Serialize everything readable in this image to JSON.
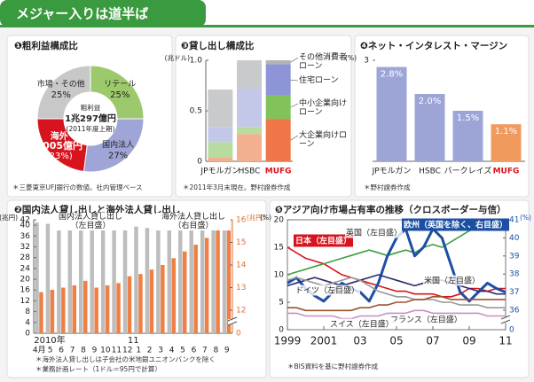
{
  "header": {
    "title": "メジャー入りは道半ば"
  },
  "chart_data": [
    {
      "type": "donut",
      "title": "❶粗利益構成比",
      "categories": [
        "リテール",
        "国内法人",
        "海外",
        "市場・その他"
      ],
      "values": [
        25,
        27,
        23,
        25
      ],
      "value_labels": [
        "25%",
        "27%",
        "(23%)",
        "25%"
      ],
      "colors": [
        "#9cc96b",
        "#9fa5d6",
        "#d7141e",
        "#c8c8c8"
      ],
      "annotation": {
        "text": "3005億円",
        "category": 2
      },
      "center_text": [
        "粗利益",
        "1兆297億円",
        "(2011年度上期)"
      ],
      "notes": [
        "＊三菱東京UFJ銀行の数値。社内管理ベース"
      ]
    },
    {
      "type": "bar",
      "title": "❷国内法人貸し出しと海外法人貸し出し",
      "categories": [
        "4月",
        "5",
        "6",
        "7",
        "8",
        "9",
        "10",
        "11",
        "12",
        "1",
        "2",
        "3",
        "4",
        "5",
        "6",
        "7",
        "8",
        "9"
      ],
      "years": [
        {
          "label": "2010年",
          "category": 0
        },
        {
          "label": "11",
          "category": 9
        }
      ],
      "series": [
        {
          "name": "国内法人貸し出し（左目盛）",
          "color": "#bdbdbd",
          "values": [
            41,
            40.5,
            40,
            40.5,
            40,
            40,
            39.5,
            39.5,
            40,
            39.5,
            39,
            40,
            39.5,
            39,
            39,
            39,
            38.5,
            39
          ]
        },
        {
          "name": "海外法人貸し出し（右目盛）",
          "color": "#ef7f45",
          "axis": "y2",
          "values": [
            12.8,
            12.9,
            13,
            13.1,
            13.3,
            13,
            13.1,
            13.2,
            13.5,
            13.6,
            13.8,
            14,
            14.3,
            14.6,
            14.9,
            15.2,
            15.6,
            16
          ]
        }
      ],
      "ylim": [
        0,
        42
      ],
      "yticks": [
        0,
        4,
        8,
        12,
        16,
        20,
        24,
        28,
        32,
        36,
        40,
        42
      ],
      "y_unit": "(兆円)",
      "y2lim": [
        0,
        16
      ],
      "y2ticks": [
        0,
        12,
        13,
        14,
        15,
        16
      ],
      "y2_break": [
        0,
        12
      ],
      "y2_unit": "(兆円)",
      "notes": [
        "＊海外法人貸し出しは子会社の米地銀ユニオンバンクを除く",
        "＊業務計画レート（1ドル＝95円で計算）"
      ]
    },
    {
      "type": "stacked_bar",
      "title": "❸貸し出し構成比",
      "categories": [
        "JPモルガン",
        "HSBC",
        "MUFG"
      ],
      "highlight": "MUFG",
      "series": [
        {
          "name": "大企業向けローン",
          "color": "#f3b08e",
          "highlight_color": "#ee7648",
          "values": [
            0.04,
            0.27,
            0.42
          ]
        },
        {
          "name": "中小企業向けローン",
          "color": "#b8dca0",
          "highlight_color": "#82c25a",
          "values": [
            0.15,
            0.07,
            0.23
          ]
        },
        {
          "name": "住宅ローン",
          "color": "#c4c8e8",
          "highlight_color": "#8d95d8",
          "values": [
            0.15,
            0.38,
            0.31
          ]
        },
        {
          "name": "その他消費者ローン",
          "color": "#c8cacc",
          "highlight_color": "#b4b4b4",
          "values": [
            0.37,
            0.28,
            0.04
          ]
        }
      ],
      "ylim": [
        0,
        1
      ],
      "yticks": [
        0,
        0.5,
        {
          "value": 1,
          "label": "1.0"
        }
      ],
      "y_unit": "(兆ドル)",
      "notes": [
        "＊2011年3月末現在。野村證券作成"
      ]
    },
    {
      "type": "bar",
      "title": "❹ネット・インタレスト・マージン",
      "categories": [
        "JPモルガン",
        "HSBC",
        "バークレイズ",
        "MUFG"
      ],
      "highlight": "MUFG",
      "values": [
        2.8,
        2.0,
        1.5,
        1.1
      ],
      "value_labels": [
        "2.8%",
        "2.0%",
        "1.5%",
        "1.1%"
      ],
      "color": "#9da4d6",
      "highlight_color": "#f19a5e",
      "ylim": [
        0,
        3
      ],
      "yticks": [
        3
      ],
      "y_unit": "(%)",
      "notes": [
        "＊野村證券作成"
      ]
    },
    {
      "type": "line",
      "title": "❺アジア向け市場占有率の推移（クロスボーダー与信）",
      "x": [
        1999,
        1999.5,
        2000,
        2000.5,
        2001,
        2001.5,
        2002,
        2002.5,
        2003,
        2003.5,
        2004,
        2004.5,
        2005,
        2005.5,
        2006,
        2006.5,
        2007,
        2007.5,
        2008,
        2008.5,
        2009,
        2009.5,
        2010,
        2010.5,
        2011
      ],
      "xlim": [
        1999,
        2011
      ],
      "xticks": [
        1999,
        2001,
        {
          "value": 2003,
          "label": "03"
        },
        {
          "value": 2005,
          "label": "05"
        },
        {
          "value": 2007,
          "label": "07"
        },
        {
          "value": 2009,
          "label": "09"
        },
        {
          "value": 2011,
          "label": "11"
        }
      ],
      "ylim": [
        0,
        20
      ],
      "yticks": [
        0,
        5,
        10,
        15,
        20
      ],
      "y_unit": "(%)",
      "y2lim": [
        0,
        41
      ],
      "y2ticks": [
        0,
        36,
        37,
        38,
        39,
        40,
        41
      ],
      "y2_break": [
        0,
        36
      ],
      "y2_unit": "(%)",
      "series": [
        {
          "name": "日本（左目盛）",
          "color": "#d7141e",
          "label_box": true,
          "values": [
            15,
            14,
            13,
            12.5,
            12,
            11,
            10,
            9.5,
            9,
            8.5,
            8,
            7.5,
            7,
            7,
            6.5,
            6.5,
            6.5,
            6,
            6,
            6.5,
            7.5,
            7.5,
            7,
            7.5,
            7.5
          ]
        },
        {
          "name": "英国（左目盛）",
          "color": "#3ca03c",
          "values": [
            10,
            10.5,
            11,
            11.5,
            12,
            12.5,
            13,
            13.5,
            14,
            14.5,
            14,
            13.5,
            14,
            14.5,
            14,
            15,
            15.5,
            15,
            16,
            17,
            18,
            18.5,
            19,
            19,
            19.5
          ]
        },
        {
          "name": "欧州（英国を除く、右目盛）",
          "color": "#1c4fa3",
          "axis": "y2",
          "label_box": true,
          "values": [
            37.5,
            37.8,
            37.2,
            36.8,
            36.5,
            37,
            37.5,
            37.2,
            37,
            36.5,
            37.5,
            39,
            40,
            40.5,
            39,
            39.5,
            40.5,
            40,
            38.5,
            37,
            36.5,
            37,
            37.5,
            37.2,
            37
          ]
        },
        {
          "name": "米国（左目盛）",
          "color": "#2b2b70",
          "values": [
            8,
            8.5,
            9,
            9.5,
            9,
            8.5,
            8,
            8.5,
            9,
            9.5,
            10,
            9.5,
            9,
            8.5,
            8,
            8.5,
            9,
            9,
            8.5,
            8,
            7.5,
            7,
            7,
            6.5,
            6.5
          ]
        },
        {
          "name": "ドイツ（左目盛）",
          "color": "#999999",
          "values": [
            9,
            9.5,
            9,
            8.5,
            8,
            8.5,
            9,
            9.5,
            9,
            8,
            7,
            6.5,
            6,
            6,
            5.5,
            5.5,
            5.5,
            5,
            5,
            4.5,
            4.5,
            4.5,
            4,
            4,
            4
          ]
        },
        {
          "name": "フランス（左目盛）",
          "color": "#a0522d",
          "values": [
            4,
            4,
            3.5,
            3.5,
            3.5,
            3.5,
            3.5,
            3.5,
            4,
            4,
            4.5,
            4.5,
            5,
            5,
            5.5,
            5.5,
            6,
            6,
            5.5,
            5.5,
            5.5,
            5.5,
            5.5,
            5.5,
            5.5
          ]
        },
        {
          "name": "スイス（左目盛）",
          "color": "#c98fbf",
          "values": [
            3,
            3,
            2.5,
            2.5,
            2.5,
            2.5,
            2,
            2,
            2.5,
            2.5,
            2.5,
            3,
            3,
            3,
            3.5,
            3.5,
            3,
            3,
            3,
            3,
            3,
            3,
            2.5,
            2.5,
            2.5
          ]
        }
      ],
      "notes": [
        "＊BIS資料を基に野村證券作成"
      ]
    }
  ]
}
